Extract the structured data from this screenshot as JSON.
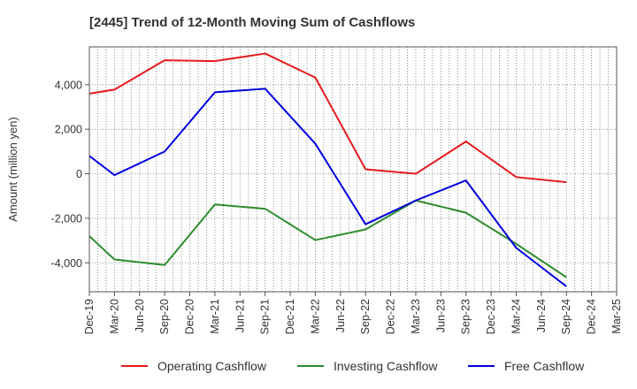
{
  "chart_data": {
    "type": "line",
    "title": "[2445]  Trend of 12-Month Moving Sum of Cashflows",
    "ylabel": "Amount (million yen)",
    "xlabel": "",
    "ylim": [
      -5300,
      5700
    ],
    "yticks": [
      -4000,
      -2000,
      0,
      2000,
      4000
    ],
    "ytick_labels": [
      "-4,000",
      "-2,000",
      "0",
      "2,000",
      "4,000"
    ],
    "categories": [
      "Dec-19",
      "Mar-20",
      "Jun-20",
      "Sep-20",
      "Dec-20",
      "Mar-21",
      "Jun-21",
      "Sep-21",
      "Dec-21",
      "Mar-22",
      "Jun-22",
      "Sep-22",
      "Dec-22",
      "Mar-23",
      "Jun-23",
      "Sep-23",
      "Dec-23",
      "Mar-24",
      "Jun-24",
      "Sep-24",
      "Dec-24",
      "Mar-25"
    ],
    "grid": true,
    "legend_position": "bottom",
    "series": [
      {
        "name": "Operating Cashflow",
        "color": "#e41a1c",
        "x": [
          "Dec-19",
          "Mar-20",
          "Sep-20",
          "Mar-21",
          "Sep-21",
          "Mar-22",
          "Sep-22",
          "Mar-23",
          "Sep-23",
          "Mar-24",
          "Sep-24"
        ],
        "values": [
          3600,
          3780,
          5100,
          5060,
          5400,
          4320,
          200,
          0,
          1450,
          -150,
          -380
        ]
      },
      {
        "name": "Investing Cashflow",
        "color": "#2e8b2e",
        "x": [
          "Dec-19",
          "Mar-20",
          "Sep-20",
          "Mar-21",
          "Sep-21",
          "Mar-22",
          "Sep-22",
          "Mar-23",
          "Sep-23",
          "Mar-24",
          "Sep-24"
        ],
        "values": [
          -2800,
          -3850,
          -4100,
          -1380,
          -1570,
          -2980,
          -2500,
          -1200,
          -1750,
          -3150,
          -4650
        ]
      },
      {
        "name": "Free Cashflow",
        "color": "#0000dd",
        "x": [
          "Dec-19",
          "Mar-20",
          "Sep-20",
          "Mar-21",
          "Sep-21",
          "Mar-22",
          "Sep-22",
          "Mar-23",
          "Sep-23",
          "Mar-24",
          "Sep-24"
        ],
        "values": [
          800,
          -60,
          1000,
          3660,
          3820,
          1350,
          -2270,
          -1200,
          -300,
          -3330,
          -5060
        ]
      }
    ]
  }
}
